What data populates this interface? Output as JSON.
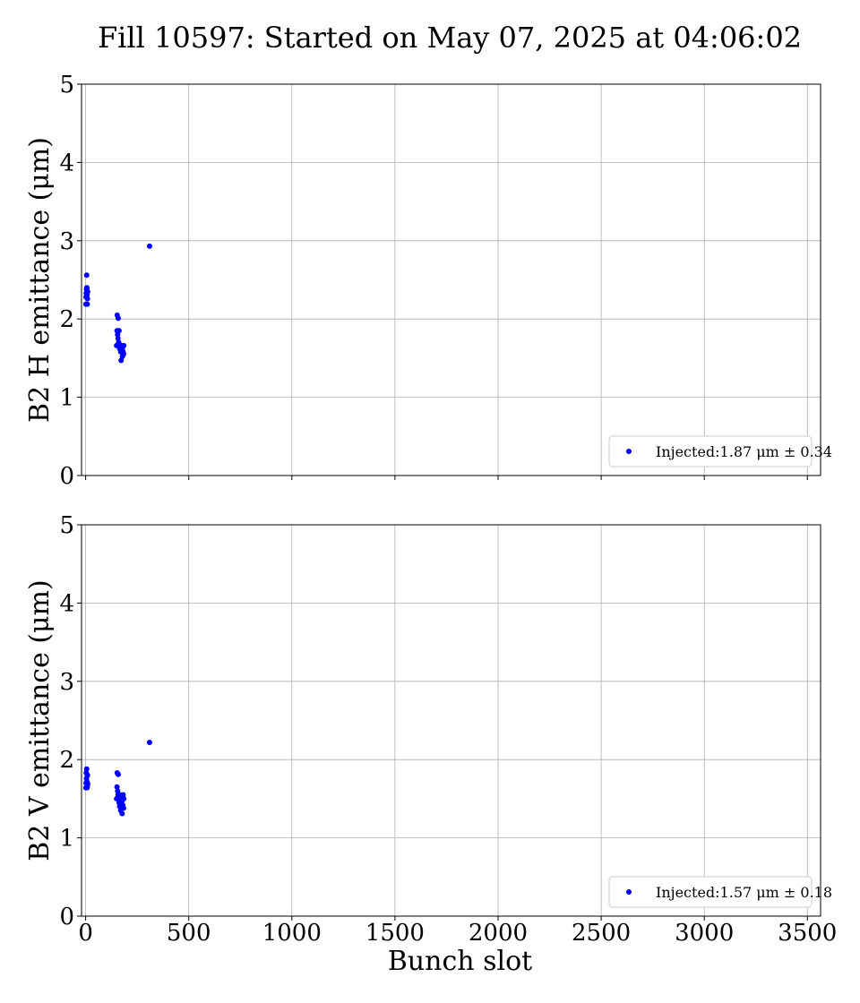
{
  "title": "Fill 10597: Started on May 07, 2025 at 04:06:02",
  "colors": {
    "series": "#0000ff",
    "grid": "#b0b0b0",
    "axis": "#000000"
  },
  "chart_data": [
    {
      "type": "scatter",
      "xlabel": "",
      "ylabel": "B2 H emittance (μm)",
      "xlim": [
        -20,
        3564
      ],
      "ylim": [
        0,
        5
      ],
      "xticks": [
        0,
        500,
        1000,
        1500,
        2000,
        2500,
        3000,
        3500
      ],
      "xtick_labels": [],
      "yticks": [
        0,
        1,
        2,
        3,
        4,
        5
      ],
      "ytick_labels": [
        "0",
        "1",
        "2",
        "3",
        "4",
        "5"
      ],
      "grid": true,
      "legend_position": "lower-right",
      "series": [
        {
          "name": "Injected:1.87 μm ± 0.34",
          "x": [
            1,
            2,
            3,
            4,
            5,
            6,
            7,
            8,
            9,
            10,
            150,
            152,
            153,
            155,
            157,
            158,
            160,
            162,
            163,
            165,
            167,
            170,
            172,
            175,
            177,
            178,
            180,
            182,
            184,
            185,
            310
          ],
          "y": [
            2.19,
            2.28,
            2.33,
            2.38,
            2.56,
            2.4,
            2.31,
            2.19,
            2.26,
            2.35,
            1.66,
            1.85,
            2.05,
            1.8,
            1.75,
            2.01,
            1.7,
            1.85,
            1.65,
            1.62,
            1.67,
            1.58,
            1.47,
            1.6,
            1.62,
            1.52,
            1.64,
            1.58,
            1.55,
            1.66,
            2.93
          ]
        }
      ]
    },
    {
      "type": "scatter",
      "xlabel": "Bunch slot",
      "ylabel": "B2 V emittance (μm)",
      "xlim": [
        -20,
        3564
      ],
      "ylim": [
        0,
        5
      ],
      "xticks": [
        0,
        500,
        1000,
        1500,
        2000,
        2500,
        3000,
        3500
      ],
      "xtick_labels": [
        "0",
        "500",
        "1000",
        "1500",
        "2000",
        "2500",
        "3000",
        "3500"
      ],
      "yticks": [
        0,
        1,
        2,
        3,
        4,
        5
      ],
      "ytick_labels": [
        "0",
        "1",
        "2",
        "3",
        "4",
        "5"
      ],
      "grid": true,
      "legend_position": "lower-right",
      "series": [
        {
          "name": "Injected:1.57 μm ± 0.18",
          "x": [
            1,
            2,
            3,
            4,
            5,
            6,
            7,
            8,
            9,
            10,
            150,
            152,
            153,
            155,
            157,
            158,
            160,
            162,
            163,
            165,
            167,
            170,
            172,
            175,
            177,
            178,
            180,
            182,
            184,
            185,
            310
          ],
          "y": [
            1.64,
            1.7,
            1.83,
            1.76,
            1.88,
            1.72,
            1.64,
            1.66,
            1.8,
            1.69,
            1.5,
            1.65,
            1.83,
            1.6,
            1.55,
            1.81,
            1.52,
            1.45,
            1.48,
            1.4,
            1.55,
            1.35,
            1.43,
            1.52,
            1.31,
            1.48,
            1.42,
            1.55,
            1.38,
            1.5,
            2.22
          ]
        }
      ]
    }
  ]
}
